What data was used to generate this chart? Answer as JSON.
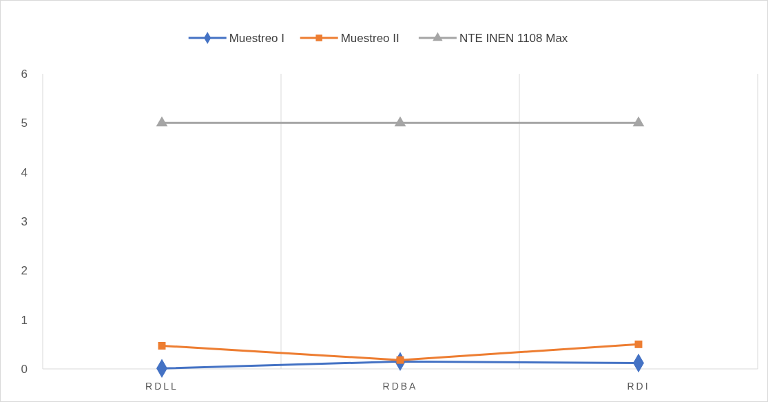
{
  "chart_data": {
    "type": "line",
    "categories": [
      "RDLL",
      "RDBA",
      "RDI"
    ],
    "series": [
      {
        "name": "Muestreo I",
        "color": "#4472c4",
        "marker": "diamond",
        "values": [
          0.01,
          0.15,
          0.12
        ]
      },
      {
        "name": "Muestreo II",
        "color": "#ed7d31",
        "marker": "square",
        "values": [
          0.47,
          0.18,
          0.5
        ]
      },
      {
        "name": "NTE INEN 1108 Max",
        "color": "#a5a5a5",
        "marker": "triangle",
        "values": [
          5,
          5,
          5
        ]
      }
    ],
    "ylim": [
      0,
      6
    ],
    "yticks": [
      0,
      1,
      2,
      3,
      4,
      5,
      6
    ],
    "grid": "x",
    "legend": "top"
  }
}
